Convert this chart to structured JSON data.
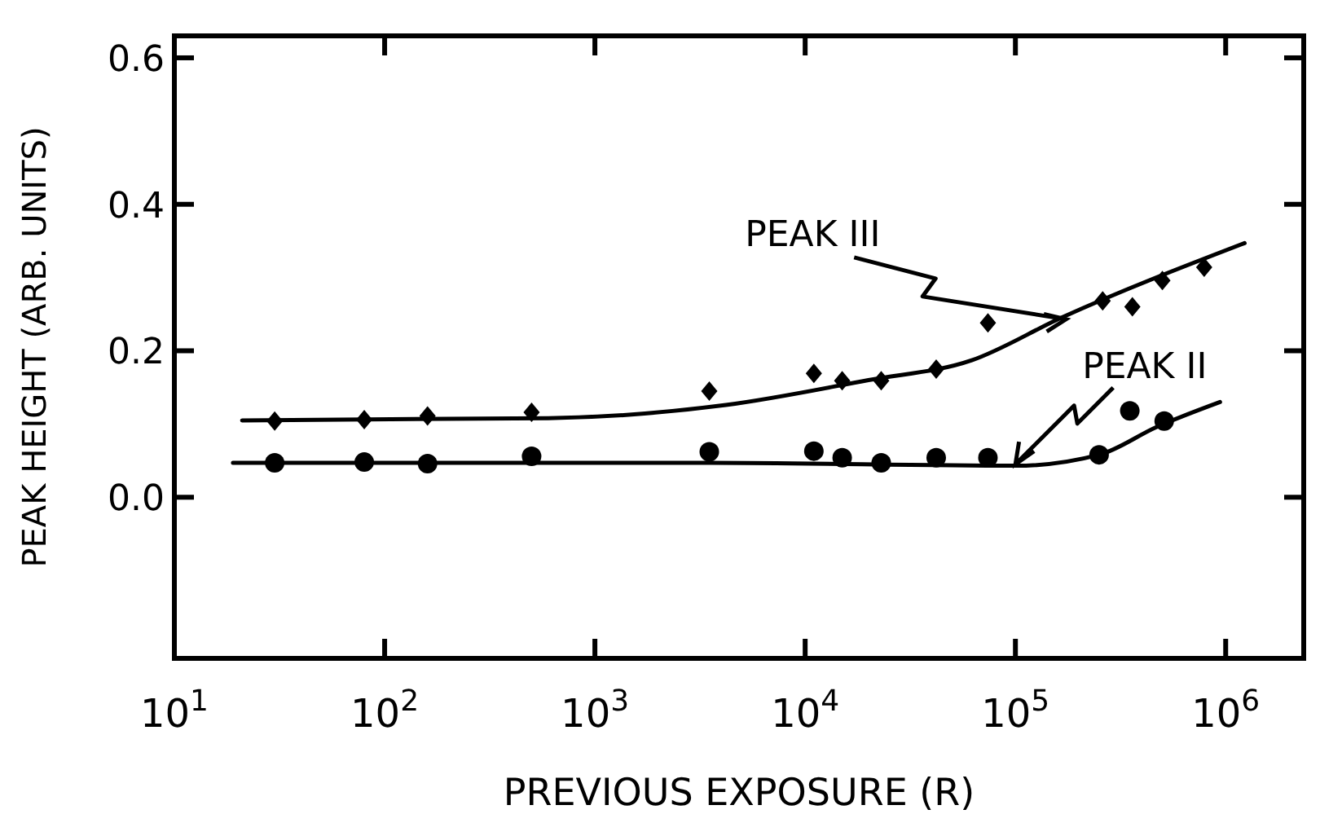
{
  "chart_data": {
    "type": "scatter",
    "xlabel": "PREVIOUS EXPOSURE (R)",
    "ylabel": "PEAK HEIGHT (ARB. UNITS)",
    "log": "x",
    "xlim": [
      10,
      2350000
    ],
    "ylim": [
      -0.22,
      0.63
    ],
    "xticks": [
      {
        "value": 10,
        "label": "10$^{1}$"
      },
      {
        "value": 100,
        "label": "10$^{2}$"
      },
      {
        "value": 1000,
        "label": "10$^{3}$"
      },
      {
        "value": 10000,
        "label": "10$^{4}$"
      },
      {
        "value": 100000,
        "label": "10$^{5}$"
      },
      {
        "value": 1000000,
        "label": "10$^{6}$"
      }
    ],
    "yticks": [
      {
        "value": 0,
        "label": "0.0"
      },
      0.2,
      0.4,
      0.6
    ],
    "grid": false,
    "series": [
      {
        "marker": "diamond",
        "color": "#000000",
        "x": [
          30,
          80,
          160,
          500,
          3500,
          11000,
          15000,
          23000,
          42000,
          74000,
          260000,
          360000,
          500000,
          790000
        ],
        "values": [
          0.104,
          0.106,
          0.111,
          0.116,
          0.145,
          0.169,
          0.159,
          0.159,
          0.175,
          0.238,
          0.268,
          0.26,
          0.296,
          0.314
        ]
      },
      {
        "marker": "circle",
        "color": "#000000",
        "x": [
          30,
          80,
          160,
          500,
          3500,
          11000,
          15000,
          23000,
          42000,
          74000,
          250000,
          350000,
          510000
        ],
        "values": [
          0.047,
          0.048,
          0.046,
          0.056,
          0.062,
          0.063,
          0.054,
          0.047,
          0.054,
          0.054,
          0.058,
          0.118,
          0.104
        ]
      },
      {
        "type": "line",
        "marker": "none",
        "line_style": "solid",
        "color": "#000000",
        "x": [
          21,
          600,
          4200,
          20000,
          62000,
          165000,
          1230000
        ],
        "values": [
          0.105,
          0.108,
          0.126,
          0.16,
          0.187,
          0.245,
          0.347
        ]
      },
      {
        "type": "line",
        "marker": "none",
        "line_style": "solid",
        "color": "#000000",
        "x": [
          19,
          3500,
          100000,
          250000,
          470000,
          940000
        ],
        "values": [
          0.047,
          0.047,
          0.043,
          0.058,
          0.096,
          0.13
        ]
      }
    ],
    "annotations": [
      {
        "text": "PEAK III",
        "x": 174000,
        "y": 0.243
      },
      {
        "text": "PEAK II",
        "x": 100000,
        "y": 0.045
      }
    ]
  }
}
